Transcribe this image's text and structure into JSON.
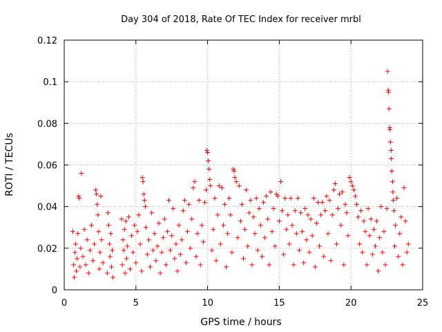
{
  "chart_data": {
    "type": "scatter",
    "title": "Day 304 of 2018, Rate Of TEC Index for receiver mrbl",
    "xlabel": "GPS time / hours",
    "ylabel": "ROTI / TECUs",
    "xlim": [
      0,
      25
    ],
    "ylim": [
      0,
      0.12
    ],
    "x_ticks": [
      0,
      5,
      10,
      15,
      20,
      25
    ],
    "x_tick_labels": [
      "0",
      "5",
      "10",
      "15",
      "20",
      "25"
    ],
    "y_ticks": [
      0,
      0.02,
      0.04,
      0.06,
      0.08,
      0.1,
      0.12
    ],
    "y_tick_labels": [
      "0",
      "0.02",
      "0.04",
      "0.06",
      "0.08",
      "0.1",
      "0.12"
    ],
    "grid": true,
    "marker": "+",
    "series": [
      {
        "name": "ROTI",
        "color": "#ff0000",
        "points": [
          [
            0.6,
            0.028
          ],
          [
            0.65,
            0.012
          ],
          [
            0.7,
            0.006
          ],
          [
            0.75,
            0.018
          ],
          [
            0.8,
            0.022
          ],
          [
            0.85,
            0.009
          ],
          [
            0.9,
            0.015
          ],
          [
            0.95,
            0.027
          ],
          [
            1.0,
            0.045
          ],
          [
            1.05,
            0.044
          ],
          [
            1.1,
            0.011
          ],
          [
            1.15,
            0.02
          ],
          [
            1.2,
            0.056
          ],
          [
            1.3,
            0.016
          ],
          [
            1.4,
            0.029
          ],
          [
            1.5,
            0.012
          ],
          [
            1.6,
            0.024
          ],
          [
            1.7,
            0.008
          ],
          [
            1.8,
            0.019
          ],
          [
            1.9,
            0.031
          ],
          [
            2.0,
            0.014
          ],
          [
            2.1,
            0.022
          ],
          [
            2.2,
            0.048
          ],
          [
            2.25,
            0.046
          ],
          [
            2.3,
            0.041
          ],
          [
            2.35,
            0.036
          ],
          [
            2.4,
            0.028
          ],
          [
            2.45,
            0.01
          ],
          [
            2.5,
            0.018
          ],
          [
            2.55,
            0.045
          ],
          [
            2.6,
            0.024
          ],
          [
            2.7,
            0.013
          ],
          [
            3.0,
            0.008
          ],
          [
            3.05,
            0.037
          ],
          [
            3.1,
            0.031
          ],
          [
            3.15,
            0.022
          ],
          [
            3.2,
            0.016
          ],
          [
            3.25,
            0.027
          ],
          [
            3.3,
            0.011
          ],
          [
            3.35,
            0.019
          ],
          [
            3.4,
            0.006
          ],
          [
            4.0,
            0.034
          ],
          [
            4.05,
            0.012
          ],
          [
            4.1,
            0.024
          ],
          [
            4.15,
            0.019
          ],
          [
            4.2,
            0.029
          ],
          [
            4.25,
            0.008
          ],
          [
            4.3,
            0.033
          ],
          [
            4.35,
            0.015
          ],
          [
            4.4,
            0.021
          ],
          [
            4.5,
            0.035
          ],
          [
            4.6,
            0.01
          ],
          [
            4.7,
            0.026
          ],
          [
            4.8,
            0.018
          ],
          [
            4.9,
            0.031
          ],
          [
            5.0,
            0.013
          ],
          [
            5.1,
            0.028
          ],
          [
            5.2,
            0.036
          ],
          [
            5.3,
            0.022
          ],
          [
            5.4,
            0.009
          ],
          [
            5.45,
            0.054
          ],
          [
            5.5,
            0.052
          ],
          [
            5.55,
            0.046
          ],
          [
            5.6,
            0.043
          ],
          [
            5.65,
            0.04
          ],
          [
            5.7,
            0.03
          ],
          [
            5.8,
            0.017
          ],
          [
            5.9,
            0.024
          ],
          [
            6.0,
            0.011
          ],
          [
            6.1,
            0.037
          ],
          [
            6.2,
            0.019
          ],
          [
            6.3,
            0.027
          ],
          [
            6.4,
            0.014
          ],
          [
            6.5,
            0.021
          ],
          [
            6.6,
            0.032
          ],
          [
            6.7,
            0.008
          ],
          [
            6.8,
            0.018
          ],
          [
            6.9,
            0.025
          ],
          [
            7.0,
            0.034
          ],
          [
            7.1,
            0.012
          ],
          [
            7.2,
            0.028
          ],
          [
            7.3,
            0.043
          ],
          [
            7.4,
            0.019
          ],
          [
            7.5,
            0.026
          ],
          [
            7.6,
            0.039
          ],
          [
            7.7,
            0.015
          ],
          [
            7.8,
            0.022
          ],
          [
            7.9,
            0.009
          ],
          [
            8.0,
            0.031
          ],
          [
            8.1,
            0.017
          ],
          [
            8.2,
            0.024
          ],
          [
            8.3,
            0.038
          ],
          [
            8.4,
            0.043
          ],
          [
            8.5,
            0.013
          ],
          [
            8.6,
            0.028
          ],
          [
            8.7,
            0.041
          ],
          [
            8.8,
            0.02
          ],
          [
            8.9,
            0.034
          ],
          [
            9.0,
            0.049
          ],
          [
            9.1,
            0.052
          ],
          [
            9.2,
            0.016
          ],
          [
            9.3,
            0.027
          ],
          [
            9.4,
            0.043
          ],
          [
            9.5,
            0.012
          ],
          [
            9.6,
            0.031
          ],
          [
            9.7,
            0.023
          ],
          [
            9.8,
            0.042
          ],
          [
            9.9,
            0.048
          ],
          [
            9.95,
            0.067
          ],
          [
            10.0,
            0.066
          ],
          [
            10.05,
            0.062
          ],
          [
            10.1,
            0.058
          ],
          [
            10.15,
            0.053
          ],
          [
            10.2,
            0.05
          ],
          [
            10.3,
            0.019
          ],
          [
            10.4,
            0.029
          ],
          [
            10.5,
            0.044
          ],
          [
            10.6,
            0.014
          ],
          [
            10.7,
            0.036
          ],
          [
            10.8,
            0.05
          ],
          [
            10.9,
            0.022
          ],
          [
            11.0,
            0.049
          ],
          [
            11.1,
            0.031
          ],
          [
            11.2,
            0.041
          ],
          [
            11.3,
            0.011
          ],
          [
            11.4,
            0.027
          ],
          [
            11.5,
            0.044
          ],
          [
            11.6,
            0.036
          ],
          [
            11.7,
            0.018
          ],
          [
            11.8,
            0.058
          ],
          [
            11.85,
            0.057
          ],
          [
            11.9,
            0.054
          ],
          [
            12.0,
            0.052
          ],
          [
            12.1,
            0.025
          ],
          [
            12.2,
            0.05
          ],
          [
            12.3,
            0.033
          ],
          [
            12.4,
            0.041
          ],
          [
            12.5,
            0.015
          ],
          [
            12.6,
            0.029
          ],
          [
            12.7,
            0.048
          ],
          [
            12.8,
            0.021
          ],
          [
            12.9,
            0.037
          ],
          [
            13.0,
            0.043
          ],
          [
            13.1,
            0.012
          ],
          [
            13.2,
            0.035
          ],
          [
            13.3,
            0.027
          ],
          [
            13.4,
            0.044
          ],
          [
            13.5,
            0.019
          ],
          [
            13.6,
            0.039
          ],
          [
            13.7,
            0.031
          ],
          [
            13.8,
            0.016
          ],
          [
            13.9,
            0.042
          ],
          [
            14.0,
            0.025
          ],
          [
            14.1,
            0.045
          ],
          [
            14.2,
            0.034
          ],
          [
            14.3,
            0.012
          ],
          [
            14.4,
            0.047
          ],
          [
            14.5,
            0.028
          ],
          [
            14.6,
            0.039
          ],
          [
            14.7,
            0.021
          ],
          [
            14.8,
            0.046
          ],
          [
            14.9,
            0.045
          ],
          [
            15.0,
            0.033
          ],
          [
            15.1,
            0.052
          ],
          [
            15.2,
            0.038
          ],
          [
            15.3,
            0.017
          ],
          [
            15.4,
            0.044
          ],
          [
            15.5,
            0.029
          ],
          [
            15.6,
            0.036
          ],
          [
            15.7,
            0.022
          ],
          [
            15.8,
            0.044
          ],
          [
            15.9,
            0.031
          ],
          [
            16.0,
            0.012
          ],
          [
            16.1,
            0.038
          ],
          [
            16.2,
            0.027
          ],
          [
            16.3,
            0.044
          ],
          [
            16.4,
            0.019
          ],
          [
            16.5,
            0.037
          ],
          [
            16.6,
            0.028
          ],
          [
            16.7,
            0.013
          ],
          [
            16.8,
            0.039
          ],
          [
            16.9,
            0.024
          ],
          [
            17.0,
            0.036
          ],
          [
            17.1,
            0.018
          ],
          [
            17.2,
            0.034
          ],
          [
            17.3,
            0.026
          ],
          [
            17.4,
            0.044
          ],
          [
            17.5,
            0.011
          ],
          [
            17.6,
            0.032
          ],
          [
            17.7,
            0.042
          ],
          [
            17.8,
            0.021
          ],
          [
            17.9,
            0.036
          ],
          [
            18.0,
            0.042
          ],
          [
            18.1,
            0.016
          ],
          [
            18.2,
            0.038
          ],
          [
            18.3,
            0.045
          ],
          [
            18.4,
            0.027
          ],
          [
            18.5,
            0.043
          ],
          [
            18.6,
            0.014
          ],
          [
            18.7,
            0.036
          ],
          [
            18.8,
            0.048
          ],
          [
            18.9,
            0.051
          ],
          [
            19.0,
            0.022
          ],
          [
            19.1,
            0.039
          ],
          [
            19.2,
            0.046
          ],
          [
            19.3,
            0.031
          ],
          [
            19.4,
            0.047
          ],
          [
            19.5,
            0.012
          ],
          [
            19.6,
            0.041
          ],
          [
            19.7,
            0.037
          ],
          [
            19.8,
            0.026
          ],
          [
            19.9,
            0.054
          ],
          [
            20.0,
            0.052
          ],
          [
            20.1,
            0.05
          ],
          [
            20.2,
            0.048
          ],
          [
            20.3,
            0.045
          ],
          [
            20.4,
            0.041
          ],
          [
            20.5,
            0.035
          ],
          [
            20.6,
            0.022
          ],
          [
            20.7,
            0.038
          ],
          [
            20.8,
            0.018
          ],
          [
            20.9,
            0.033
          ],
          [
            21.0,
            0.028
          ],
          [
            21.1,
            0.012
          ],
          [
            21.2,
            0.039
          ],
          [
            21.3,
            0.026
          ],
          [
            21.4,
            0.034
          ],
          [
            21.5,
            0.017
          ],
          [
            21.6,
            0.029
          ],
          [
            21.7,
            0.021
          ],
          [
            21.8,
            0.033
          ],
          [
            21.9,
            0.009
          ],
          [
            22.0,
            0.025
          ],
          [
            22.1,
            0.04
          ],
          [
            22.2,
            0.018
          ],
          [
            22.3,
            0.028
          ],
          [
            22.4,
            0.012
          ],
          [
            22.5,
            0.039
          ],
          [
            22.55,
            0.105
          ],
          [
            22.6,
            0.096
          ],
          [
            22.62,
            0.095
          ],
          [
            22.65,
            0.087
          ],
          [
            22.7,
            0.078
          ],
          [
            22.72,
            0.077
          ],
          [
            22.75,
            0.071
          ],
          [
            22.8,
            0.067
          ],
          [
            22.82,
            0.063
          ],
          [
            22.85,
            0.057
          ],
          [
            22.9,
            0.052
          ],
          [
            22.92,
            0.047
          ],
          [
            22.95,
            0.043
          ],
          [
            23.0,
            0.038
          ],
          [
            23.05,
            0.021
          ],
          [
            23.1,
            0.031
          ],
          [
            23.2,
            0.044
          ],
          [
            23.3,
            0.016
          ],
          [
            23.4,
            0.027
          ],
          [
            23.5,
            0.035
          ],
          [
            23.6,
            0.012
          ],
          [
            23.7,
            0.049
          ],
          [
            23.8,
            0.033
          ],
          [
            23.9,
            0.018
          ],
          [
            24.0,
            0.022
          ]
        ]
      }
    ]
  }
}
